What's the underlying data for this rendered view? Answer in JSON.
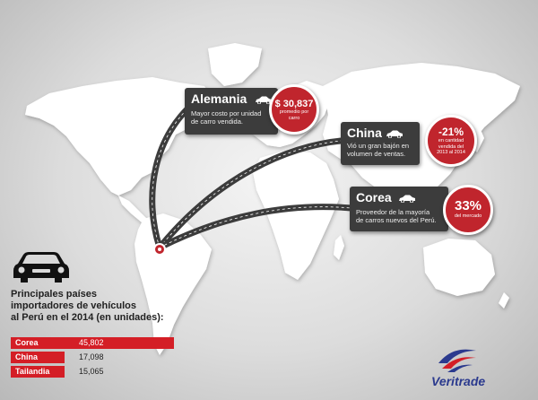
{
  "callouts": {
    "alemania": {
      "title": "Alemania",
      "desc_line1": "Mayor costo por unidad",
      "desc_line2": "de carro vendida.",
      "stat": "$ 30,837",
      "stat_line1": "promedio por",
      "stat_line2": "carro"
    },
    "china": {
      "title": "China",
      "desc_line1": "Vió un gran bajón en",
      "desc_line2": "volumen de ventas.",
      "stat": "-21%",
      "stat_line1": "en cantidad",
      "stat_line2": "vendida del",
      "stat_line3": "2013 al 2014"
    },
    "corea": {
      "title": "Corea",
      "desc_line1": "Proveedor de la mayoría",
      "desc_line2": "de carros nuevos del Perú.",
      "stat": "33%",
      "stat_line1": "del mercado"
    }
  },
  "ranking": {
    "heading_line1": "Principales países",
    "heading_line2": "importadores de vehículos",
    "heading_line3": "al Perú en el 2014 (en unidades):",
    "rows": [
      {
        "country": "Corea",
        "units": "45,802"
      },
      {
        "country": "China",
        "units": "17,098"
      },
      {
        "country": "Tailandia",
        "units": "15,065"
      }
    ]
  },
  "logo": {
    "name": "Veritrade"
  },
  "colors": {
    "accent": "#c0252d",
    "panel": "#3c3c3c",
    "logo_blue": "#2b3a8e"
  },
  "icons": [
    "car-icon",
    "car-silhouette-icon",
    "location-pin-icon",
    "veritrade-logo-icon",
    "world-map"
  ]
}
